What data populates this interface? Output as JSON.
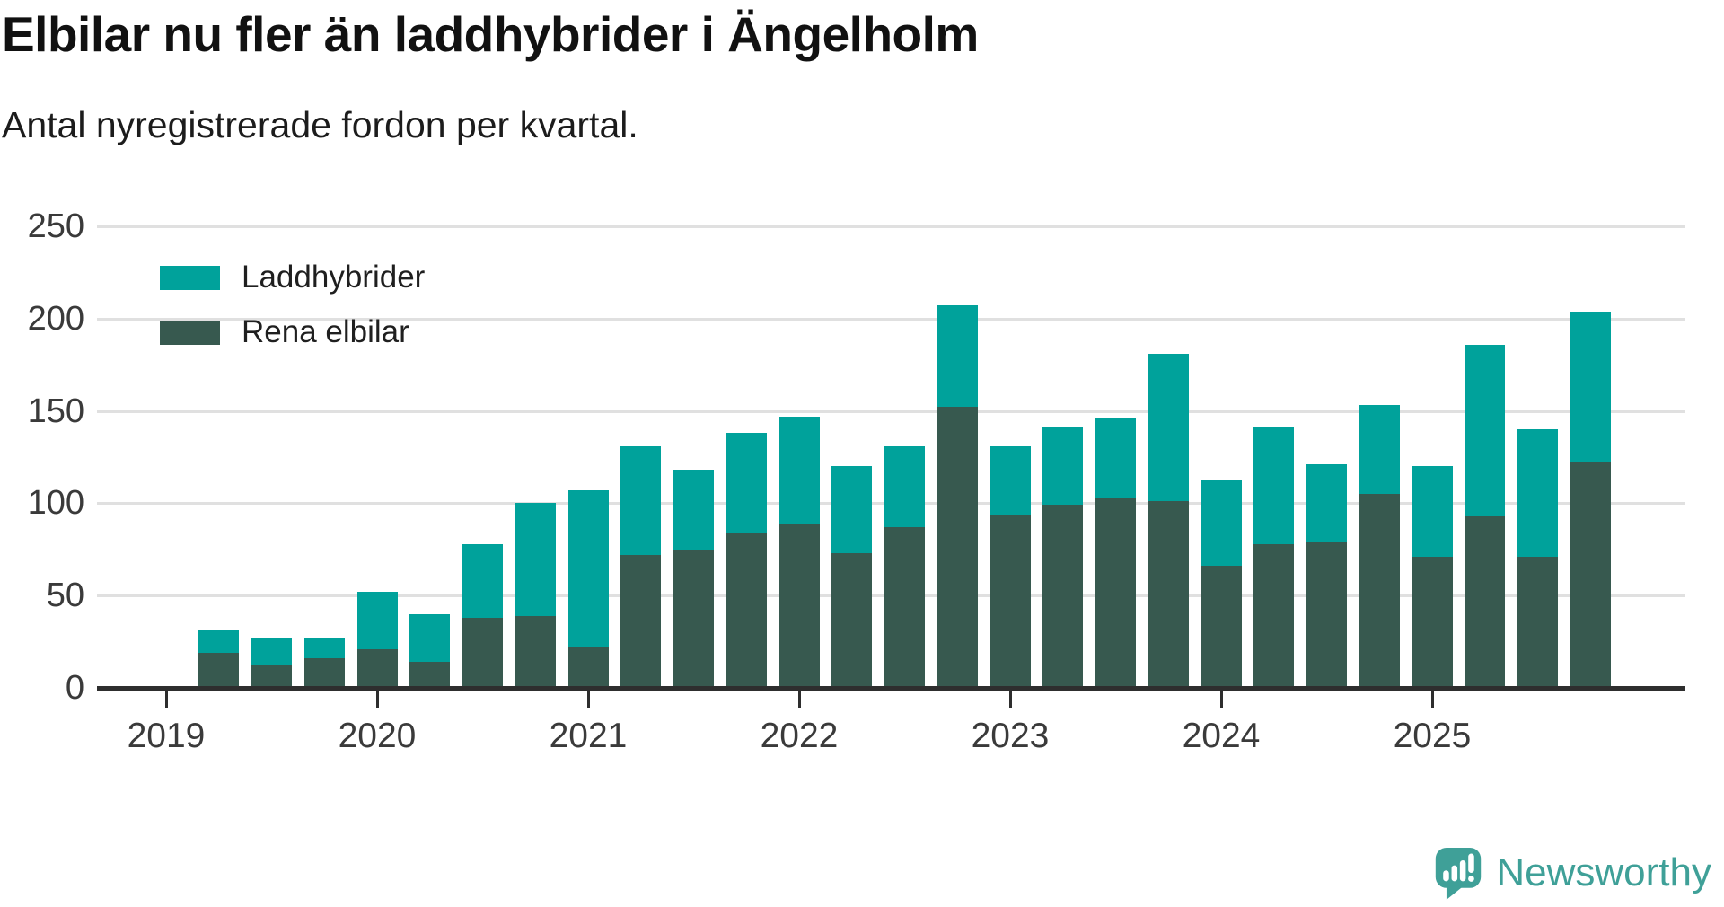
{
  "header": {
    "title": "Elbilar nu fler än laddhybrider i Ängelholm",
    "subtitle": "Antal nyregistrerade fordon per kvartal."
  },
  "chart_data": {
    "type": "bar",
    "stacked": true,
    "title": "Elbilar nu fler än laddhybrider i Ängelholm",
    "subtitle": "Antal nyregistrerade fordon per kvartal.",
    "grid": "horizontal",
    "legend_position": "top-left",
    "ylim": [
      0,
      250
    ],
    "y_ticks": [
      0,
      50,
      100,
      150,
      200,
      250
    ],
    "x_tick_labels": [
      "2019",
      "2020",
      "2021",
      "2022",
      "2023",
      "2024",
      "2025"
    ],
    "quarters": [
      "2019 Q2",
      "2019 Q3",
      "2019 Q4",
      "2020 Q1",
      "2020 Q2",
      "2020 Q3",
      "2020 Q4",
      "2021 Q1",
      "2021 Q2",
      "2021 Q3",
      "2021 Q4",
      "2022 Q1",
      "2022 Q2",
      "2022 Q3",
      "2022 Q4",
      "2023 Q1",
      "2023 Q2",
      "2023 Q3",
      "2023 Q4",
      "2024 Q1",
      "2024 Q2",
      "2024 Q3",
      "2024 Q4",
      "2025 Q1",
      "2025 Q2",
      "2025 Q3",
      "2025 Q4"
    ],
    "series": [
      {
        "name": "Laddhybrider",
        "color": "#00a29b",
        "values": [
          12,
          15,
          11,
          31,
          26,
          40,
          61,
          85,
          59,
          43,
          54,
          58,
          47,
          44,
          55,
          37,
          42,
          43,
          80,
          47,
          63,
          42,
          48,
          49,
          93,
          69,
          82
        ]
      },
      {
        "name": "Rena elbilar",
        "color": "#37594f",
        "values": [
          19,
          12,
          16,
          21,
          14,
          38,
          39,
          22,
          72,
          75,
          84,
          89,
          73,
          87,
          152,
          94,
          99,
          103,
          101,
          66,
          78,
          79,
          105,
          71,
          93,
          71,
          122
        ]
      }
    ],
    "stack_totals": [
      31,
      27,
      27,
      52,
      40,
      78,
      100,
      107,
      131,
      118,
      138,
      147,
      120,
      131,
      207,
      131,
      141,
      146,
      181,
      113,
      141,
      121,
      153,
      120,
      186,
      140,
      204
    ]
  },
  "colors": {
    "laddhybrider": "#00a29b",
    "rena_elbilar": "#37594f",
    "gridline": "#e0e0e0",
    "axis": "#2e2e2e",
    "brand_teal": "#3fa098"
  },
  "footer": {
    "brand": "Newsworthy"
  }
}
